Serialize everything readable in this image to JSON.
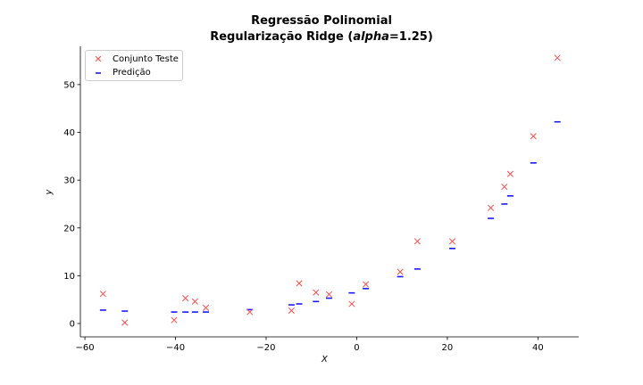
{
  "chart_data": {
    "type": "scatter",
    "title": "Regressão Polinomial",
    "subtitle_prefix": "Regularização Ridge (",
    "subtitle_alpha": "alpha",
    "subtitle_suffix": "=1.25)",
    "xlabel": "X",
    "ylabel": "y",
    "xlim": [
      -61,
      49
    ],
    "ylim": [
      -2.8,
      58
    ],
    "xticks": [
      -60,
      -40,
      -20,
      0,
      20,
      40
    ],
    "xtick_labels": [
      "−60",
      "−40",
      "−20",
      "0",
      "20",
      "40"
    ],
    "yticks": [
      0,
      10,
      20,
      30,
      40,
      50
    ],
    "ytick_labels": [
      "0",
      "10",
      "20",
      "30",
      "40",
      "50"
    ],
    "grid": false,
    "legend_position": "top-left",
    "series": [
      {
        "name": "Conjunto Teste",
        "marker": "x",
        "color": "#ff4d4d",
        "x": [
          -56.0,
          -51.2,
          -40.3,
          -37.8,
          -35.7,
          -33.3,
          -23.6,
          -14.4,
          -12.7,
          -9.0,
          -6.1,
          -1.1,
          2.0,
          9.6,
          13.4,
          21.1,
          29.6,
          32.6,
          33.9,
          39.0,
          44.3
        ],
        "y": [
          6.2,
          0.2,
          0.7,
          5.3,
          4.6,
          3.3,
          2.4,
          2.7,
          8.4,
          6.5,
          6.1,
          4.1,
          8.2,
          10.8,
          17.2,
          17.2,
          24.2,
          28.6,
          31.3,
          39.2,
          55.6
        ]
      },
      {
        "name": "Predição",
        "marker": "_",
        "color": "#1a1aff",
        "x": [
          -56.0,
          -51.2,
          -40.3,
          -37.8,
          -35.7,
          -33.3,
          -23.6,
          -14.4,
          -12.7,
          -9.0,
          -6.1,
          -1.1,
          2.0,
          9.6,
          13.4,
          21.1,
          29.6,
          32.6,
          33.9,
          39.0,
          44.3
        ],
        "y": [
          2.8,
          2.6,
          2.4,
          2.4,
          2.4,
          2.4,
          2.9,
          3.9,
          4.1,
          4.6,
          5.3,
          6.4,
          7.3,
          9.8,
          11.4,
          15.7,
          22.0,
          25.0,
          26.7,
          33.6,
          42.2
        ]
      }
    ]
  }
}
